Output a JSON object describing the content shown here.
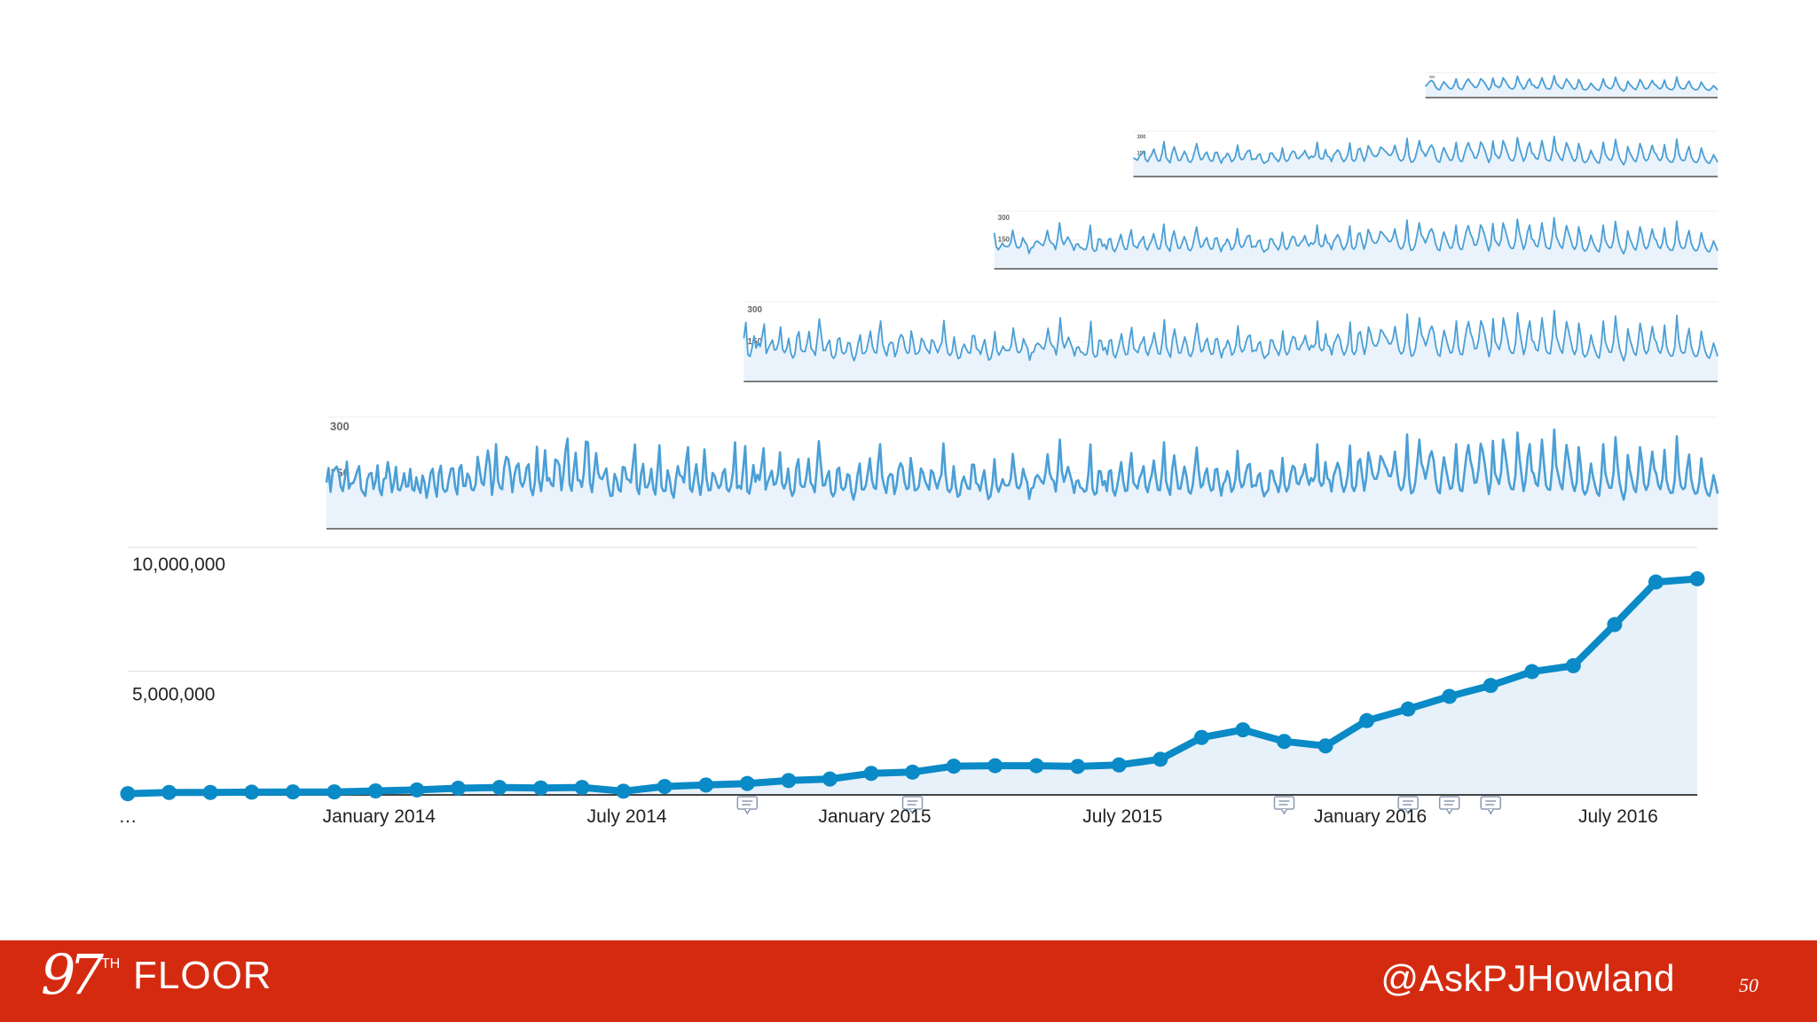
{
  "colors": {
    "line": "#0a8ac6",
    "area": "#e6f1fa",
    "spark_line": "#4a9fd6",
    "spark_area": "#eaf3fb",
    "grid": "#e2e2e2",
    "axis": "#444444",
    "footer": "#d42b10",
    "text": "#222222"
  },
  "footer": {
    "logo_number": "97",
    "logo_superscript": "TH",
    "logo_word": "FLOOR",
    "handle": "@AskPJHowland",
    "page_number": "50"
  },
  "chart_data": [
    {
      "id": "main",
      "type": "line",
      "fill": true,
      "markers": true,
      "x_labels": [
        "…",
        "January 2014",
        "July 2014",
        "January 2015",
        "July 2015",
        "January 2016",
        "July 2016"
      ],
      "x_label_index": [
        0,
        6,
        12,
        18,
        24,
        30,
        36
      ],
      "annotation_index": [
        15,
        19,
        28,
        31,
        32,
        33
      ],
      "annotation_icon": "comment-icon",
      "y_ticks": [
        {
          "value": 10000000,
          "label": "10,000,000"
        },
        {
          "value": 5000000,
          "label": "5,000,000"
        }
      ],
      "ylim": [
        0,
        10000000
      ],
      "values": [
        50000,
        100000,
        100000,
        110000,
        120000,
        120000,
        160000,
        200000,
        270000,
        300000,
        280000,
        300000,
        150000,
        340000,
        400000,
        460000,
        580000,
        640000,
        870000,
        920000,
        1160000,
        1180000,
        1180000,
        1150000,
        1210000,
        1440000,
        2320000,
        2630000,
        2160000,
        1980000,
        3000000,
        3470000,
        3980000,
        4420000,
        4980000,
        5220000,
        6880000,
        8600000,
        8730000
      ]
    },
    {
      "id": "spark-full",
      "type": "area",
      "y_ticks": [
        {
          "value": 300,
          "label": "300"
        },
        {
          "value": 150,
          "label": "150"
        }
      ],
      "ylim": [
        0,
        300
      ],
      "start_fraction": 0.0,
      "values": [
        124,
        163,
        99,
        151,
        160,
        167,
        151,
        113,
        101,
        135,
        180,
        108,
        122,
        122,
        135,
        154,
        168,
        106,
        97,
        88,
        133,
        147,
        150,
        107,
        127,
        170,
        104,
        90,
        133,
        136,
        179,
        146,
        98,
        123,
        166,
        106,
        103,
        120,
        149,
        113,
        114,
        161,
        106,
        102,
        138,
        111,
        96,
        143,
        125,
        83,
        111,
        150,
        161,
        114,
        86,
        148,
        169,
        109,
        99,
        103,
        137,
        162,
        162,
        111,
        92,
        162,
        171,
        115,
        115,
        148,
        138,
        106,
        103,
        119,
        193,
        157,
        123,
        117,
        166,
        210,
        172,
        91,
        135,
        227,
        129,
        110,
        106,
        165,
        193,
        187,
        150,
        98,
        143,
        167,
        175,
        125,
        113,
        129,
        164,
        173,
        108,
        90,
        126,
        220,
        132,
        101,
        144,
        211,
        129,
        136,
        119,
        114,
        186,
        182,
        170,
        103,
        147,
        210,
        242,
        120,
        102,
        156,
        204,
        130,
        130,
        112,
        151,
        234,
        232,
        123,
        98,
        152,
        203,
        150,
        136,
        133,
        148,
        162,
        115,
        88,
        89,
        147,
        133,
        105,
        100,
        166,
        164,
        134,
        131,
        124,
        176,
        226,
        108,
        93,
        147,
        174,
        112,
        111,
        125,
        161,
        108,
        92,
        153,
        224,
        113,
        101,
        102,
        157,
        133,
        97,
        83,
        132,
        168,
        144,
        140,
        124,
        180,
        219,
        108,
        99,
        135,
        173,
        127,
        91,
        130,
        213,
        136,
        103,
        104,
        150,
        142,
        123,
        109,
        117,
        150,
        160,
        107,
        100,
        115,
        152,
        232,
        109,
        115,
        107,
        162,
        222,
        101,
        94,
        126,
        171,
        126,
        145,
        131,
        171,
        216,
        105,
        125,
        140,
        156,
        118,
        121,
        146,
        205,
        121,
        108,
        124,
        162,
        108,
        88,
        101,
        166,
        187,
        120,
        112,
        113,
        144,
        188,
        124,
        115,
        98,
        160,
        235,
        173,
        116,
        117,
        140,
        155,
        98,
        87,
        99,
        158,
        164,
        111,
        104,
        112,
        146,
        143,
        99,
        78,
        102,
        145,
        175,
        106,
        105,
        116,
        151,
        189,
        131,
        110,
        107,
        174,
        227,
        141,
        115,
        96,
        137,
        147,
        144,
        93,
        114,
        159,
        176,
        166,
        125,
        106,
        110,
        190,
        150,
        103,
        105,
        114,
        162,
        151,
        129,
        116,
        105,
        157,
        150,
        126,
        108,
        130,
        146,
        229,
        148,
        105,
        98,
        110,
        168,
        116,
        86,
        91,
        125,
        140,
        122,
        108,
        107,
        172,
        172,
        123,
        118,
        102,
        133,
        157,
        111,
        80,
        87,
        121,
        187,
        116,
        99,
        115,
        133,
        118,
        116,
        117,
        135,
        201,
        150,
        112,
        108,
        120,
        161,
        140,
        125,
        80,
        108,
        111,
        137,
        144,
        137,
        127,
        121,
        152,
        200,
        150,
        134,
        128,
        100,
        155,
        239,
        154,
        126,
        145,
        166,
        145,
        124,
        96,
        127,
        130,
        111,
        108,
        99,
        103,
        148,
        226,
        108,
        92,
        96,
        155,
        154,
        117,
        128,
        101,
        153,
        157,
        103,
        89,
        113,
        145,
        179,
        128,
        101,
        103,
        159,
        203,
        124,
        116,
        108,
        136,
        149,
        168,
        113,
        98,
        126,
        145,
        183,
        138,
        105,
        103,
        151,
        232,
        128,
        107,
        91,
        159,
        197,
        150,
        108,
        107,
        136,
        167,
        141,
        101,
        94,
        116,
        166,
        218,
        154,
        111,
        118,
        147,
        162,
        122,
        102,
        106,
        158,
        161,
        121,
        89,
        121,
        129,
        155,
        137,
        99,
        108,
        135,
        209,
        132,
        111,
        119,
        150,
        170,
        174,
        112,
        117,
        115,
        142,
        149,
        108,
        87,
        97,
        104,
        156,
        155,
        129,
        116,
        98,
        124,
        190,
        118,
        100,
        112,
        147,
        169,
        163,
        123,
        119,
        137,
        148,
        173,
        139,
        118,
        136,
        128,
        142,
        227,
        129,
        115,
        122,
        179,
        136,
        130,
        100,
        142,
        158,
        177,
        160,
        119,
        99,
        115,
        145,
        223,
        114,
        101,
        116,
        179,
        187,
        141,
        102,
        137,
        205,
        181,
        147,
        134,
        134,
        154,
        195,
        186,
        171,
        160,
        142,
        141,
        162,
        207,
        158,
        117,
        103,
        112,
        149,
        253,
        135,
        95,
        100,
        124,
        179,
        239,
        176,
        160,
        134,
        161,
        193,
        208,
        183,
        129,
        101,
        95,
        150,
        192,
        162,
        132,
        107,
        110,
        150,
        227,
        130,
        103,
        101,
        148,
        197,
        225,
        183,
        160,
        123,
        125,
        161,
        228,
        209,
        175,
        132,
        93,
        127,
        236,
        150,
        135,
        120,
        151,
        239,
        204,
        164,
        123,
        107,
        106,
        144,
        258,
        190,
        145,
        101,
        130,
        193,
        227,
        156,
        147,
        121,
        115,
        166,
        239,
        173,
        116,
        106,
        104,
        162,
        266,
        170,
        145,
        119,
        106,
        163,
        225,
        191,
        155,
        118,
        101,
        124,
        219,
        170,
        106,
        92,
        101,
        128,
        175,
        140,
        116,
        95,
        88,
        139,
        227,
        150,
        127,
        110,
        110,
        149,
        246,
        172,
        124,
        98,
        78,
        106,
        198,
        158,
        133,
        108,
        98,
        146,
        219,
        179,
        121,
        104,
        117,
        162,
        207,
        161,
        147,
        116,
        106,
        135,
        212,
        131,
        108,
        96,
        97,
        131,
        248,
        153,
        115,
        106,
        110,
        162,
        199,
        135,
        108,
        94,
        96,
        125,
        189,
        143,
        111,
        93,
        88,
        112,
        144,
        120,
        94
      ]
    },
    {
      "id": "spark-2",
      "type": "area",
      "y_ticks": [
        {
          "value": 300,
          "label": "300"
        },
        {
          "value": 150,
          "label": "150"
        }
      ],
      "ylim": [
        0,
        300
      ],
      "start_fraction": 0.3
    },
    {
      "id": "spark-3",
      "type": "area",
      "y_ticks": [
        {
          "value": 300,
          "label": "300"
        },
        {
          "value": 150,
          "label": "150"
        }
      ],
      "ylim": [
        0,
        300
      ],
      "start_fraction": 0.48
    },
    {
      "id": "spark-4",
      "type": "area",
      "y_ticks": [
        {
          "value": 300,
          "label": "300"
        },
        {
          "value": 150,
          "label": "150"
        }
      ],
      "ylim": [
        0,
        300
      ],
      "start_fraction": 0.58
    },
    {
      "id": "spark-5",
      "type": "area",
      "y_ticks": [
        {
          "value": 300,
          "label": "300"
        },
        {
          "value": 150,
          "label": "150"
        }
      ],
      "ylim": [
        0,
        300
      ],
      "start_fraction": 0.79
    }
  ]
}
